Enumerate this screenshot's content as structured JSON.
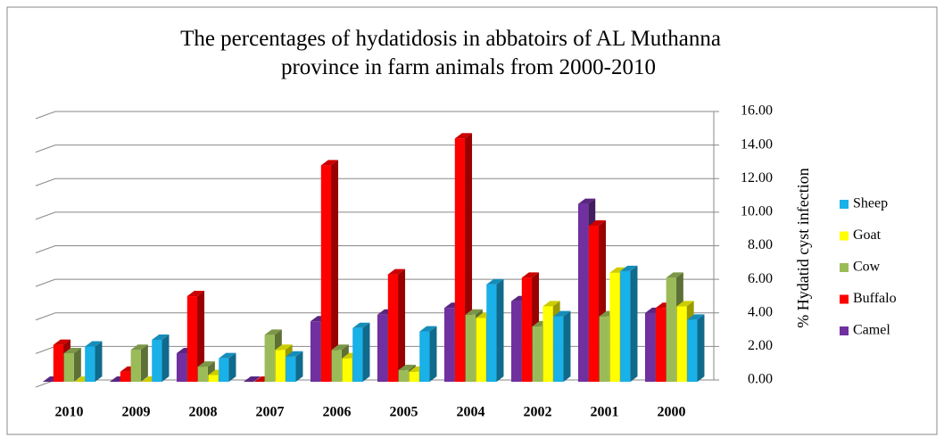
{
  "chart_data": {
    "type": "bar3d",
    "title": "The percentages of hydatidosis in abbatoirs of AL Muthanna province in farm animals from 2000-2010",
    "y_label": "% Hydatid cyst infection",
    "categories": [
      "2010",
      "2009",
      "2008",
      "2007",
      "2006",
      "2005",
      "2004",
      "2002",
      "2001",
      "2000"
    ],
    "series": [
      {
        "name": "Camel",
        "color": "#7030a0",
        "values": [
          0,
          0,
          1.7,
          0,
          3.6,
          4.0,
          4.4,
          4.8,
          10.6,
          4.1
        ]
      },
      {
        "name": "Buffalo",
        "color": "#ff0000",
        "values": [
          2.2,
          0.6,
          5.1,
          0,
          12.9,
          6.4,
          14.5,
          6.2,
          9.3,
          4.4
        ]
      },
      {
        "name": "Cow",
        "color": "#9bbb59",
        "values": [
          1.7,
          1.9,
          0.9,
          2.8,
          1.9,
          0.7,
          4.0,
          3.3,
          3.9,
          6.2
        ]
      },
      {
        "name": "Goat",
        "color": "#ffff00",
        "values": [
          0,
          0,
          0.4,
          1.9,
          1.4,
          0.6,
          3.8,
          4.5,
          6.5,
          4.5
        ]
      },
      {
        "name": "Sheep",
        "color": "#1ab0e8",
        "values": [
          2.1,
          2.5,
          1.4,
          1.5,
          3.2,
          3.0,
          5.8,
          3.9,
          6.6,
          3.7
        ]
      }
    ],
    "ylim": [
      0,
      16
    ],
    "yticks": [
      {
        "value": 0,
        "label": "0.00"
      },
      {
        "value": 2,
        "label": "2.00"
      },
      {
        "value": 4,
        "label": "4.00"
      },
      {
        "value": 6,
        "label": "6.00"
      },
      {
        "value": 8,
        "label": "8.00"
      },
      {
        "value": 10,
        "label": "10.00"
      },
      {
        "value": 12,
        "label": "12.00"
      },
      {
        "value": 14,
        "label": "14.00"
      },
      {
        "value": 16,
        "label": "16.00"
      }
    ],
    "grid": true,
    "legend": "right"
  }
}
